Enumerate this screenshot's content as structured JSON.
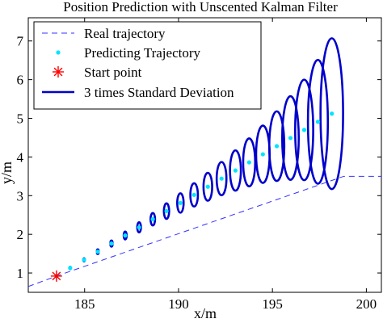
{
  "chart_data": {
    "type": "line",
    "title": "Position Prediction with Unscented Kalman Filter",
    "xlabel": "x/m",
    "ylabel": "y/m",
    "xlim": [
      182,
      200.8
    ],
    "ylim": [
      0.5,
      7.6
    ],
    "xticks": [
      185,
      190,
      195,
      200
    ],
    "yticks": [
      1,
      2,
      3,
      4,
      5,
      6,
      7
    ],
    "grid": false,
    "legend_position": "top-left",
    "colors": {
      "real": "#3333ff",
      "predicted": "#00e5ff",
      "start": "#ff0000",
      "ellipse": "#0000cc"
    },
    "series": [
      {
        "name": "Real trajectory",
        "style": "dashed-line",
        "x": [
          182,
          183.5,
          198.8,
          200.8
        ],
        "y": [
          0.65,
          0.92,
          3.5,
          3.5
        ]
      },
      {
        "name": "Predicting Trajectory",
        "style": "markers",
        "x": [
          183.5,
          184.23,
          184.97,
          185.7,
          186.43,
          187.16,
          187.9,
          188.63,
          189.36,
          190.1,
          190.83,
          191.56,
          192.29,
          193.03,
          193.76,
          194.49,
          195.23,
          195.96,
          196.69,
          197.42,
          198.16
        ],
        "y": [
          0.92,
          1.13,
          1.34,
          1.55,
          1.76,
          1.97,
          2.18,
          2.39,
          2.6,
          2.81,
          3.02,
          3.23,
          3.44,
          3.65,
          3.86,
          4.07,
          4.28,
          4.49,
          4.7,
          4.91,
          5.12
        ]
      },
      {
        "name": "Start point",
        "style": "star-marker",
        "x": [
          183.5
        ],
        "y": [
          0.92
        ]
      },
      {
        "name": "3 times Standard Deviation",
        "style": "ellipses",
        "cx": [
          184.23,
          184.97,
          185.7,
          186.43,
          187.16,
          187.9,
          188.63,
          189.36,
          190.1,
          190.83,
          191.56,
          192.29,
          193.03,
          193.76,
          194.49,
          195.23,
          195.96,
          196.69,
          197.42,
          198.16
        ],
        "cy": [
          1.13,
          1.34,
          1.55,
          1.76,
          1.97,
          2.18,
          2.39,
          2.6,
          2.81,
          3.02,
          3.23,
          3.44,
          3.65,
          3.86,
          4.07,
          4.28,
          4.49,
          4.7,
          4.91,
          5.12
        ],
        "half_width": [
          0.02,
          0.04,
          0.05,
          0.06,
          0.08,
          0.1,
          0.12,
          0.14,
          0.17,
          0.2,
          0.23,
          0.26,
          0.29,
          0.32,
          0.36,
          0.4,
          0.44,
          0.48,
          0.53,
          0.6
        ],
        "half_height": [
          0.03,
          0.04,
          0.06,
          0.08,
          0.1,
          0.13,
          0.16,
          0.2,
          0.25,
          0.3,
          0.36,
          0.43,
          0.52,
          0.62,
          0.74,
          0.9,
          1.08,
          1.3,
          1.6,
          1.95
        ]
      }
    ]
  }
}
